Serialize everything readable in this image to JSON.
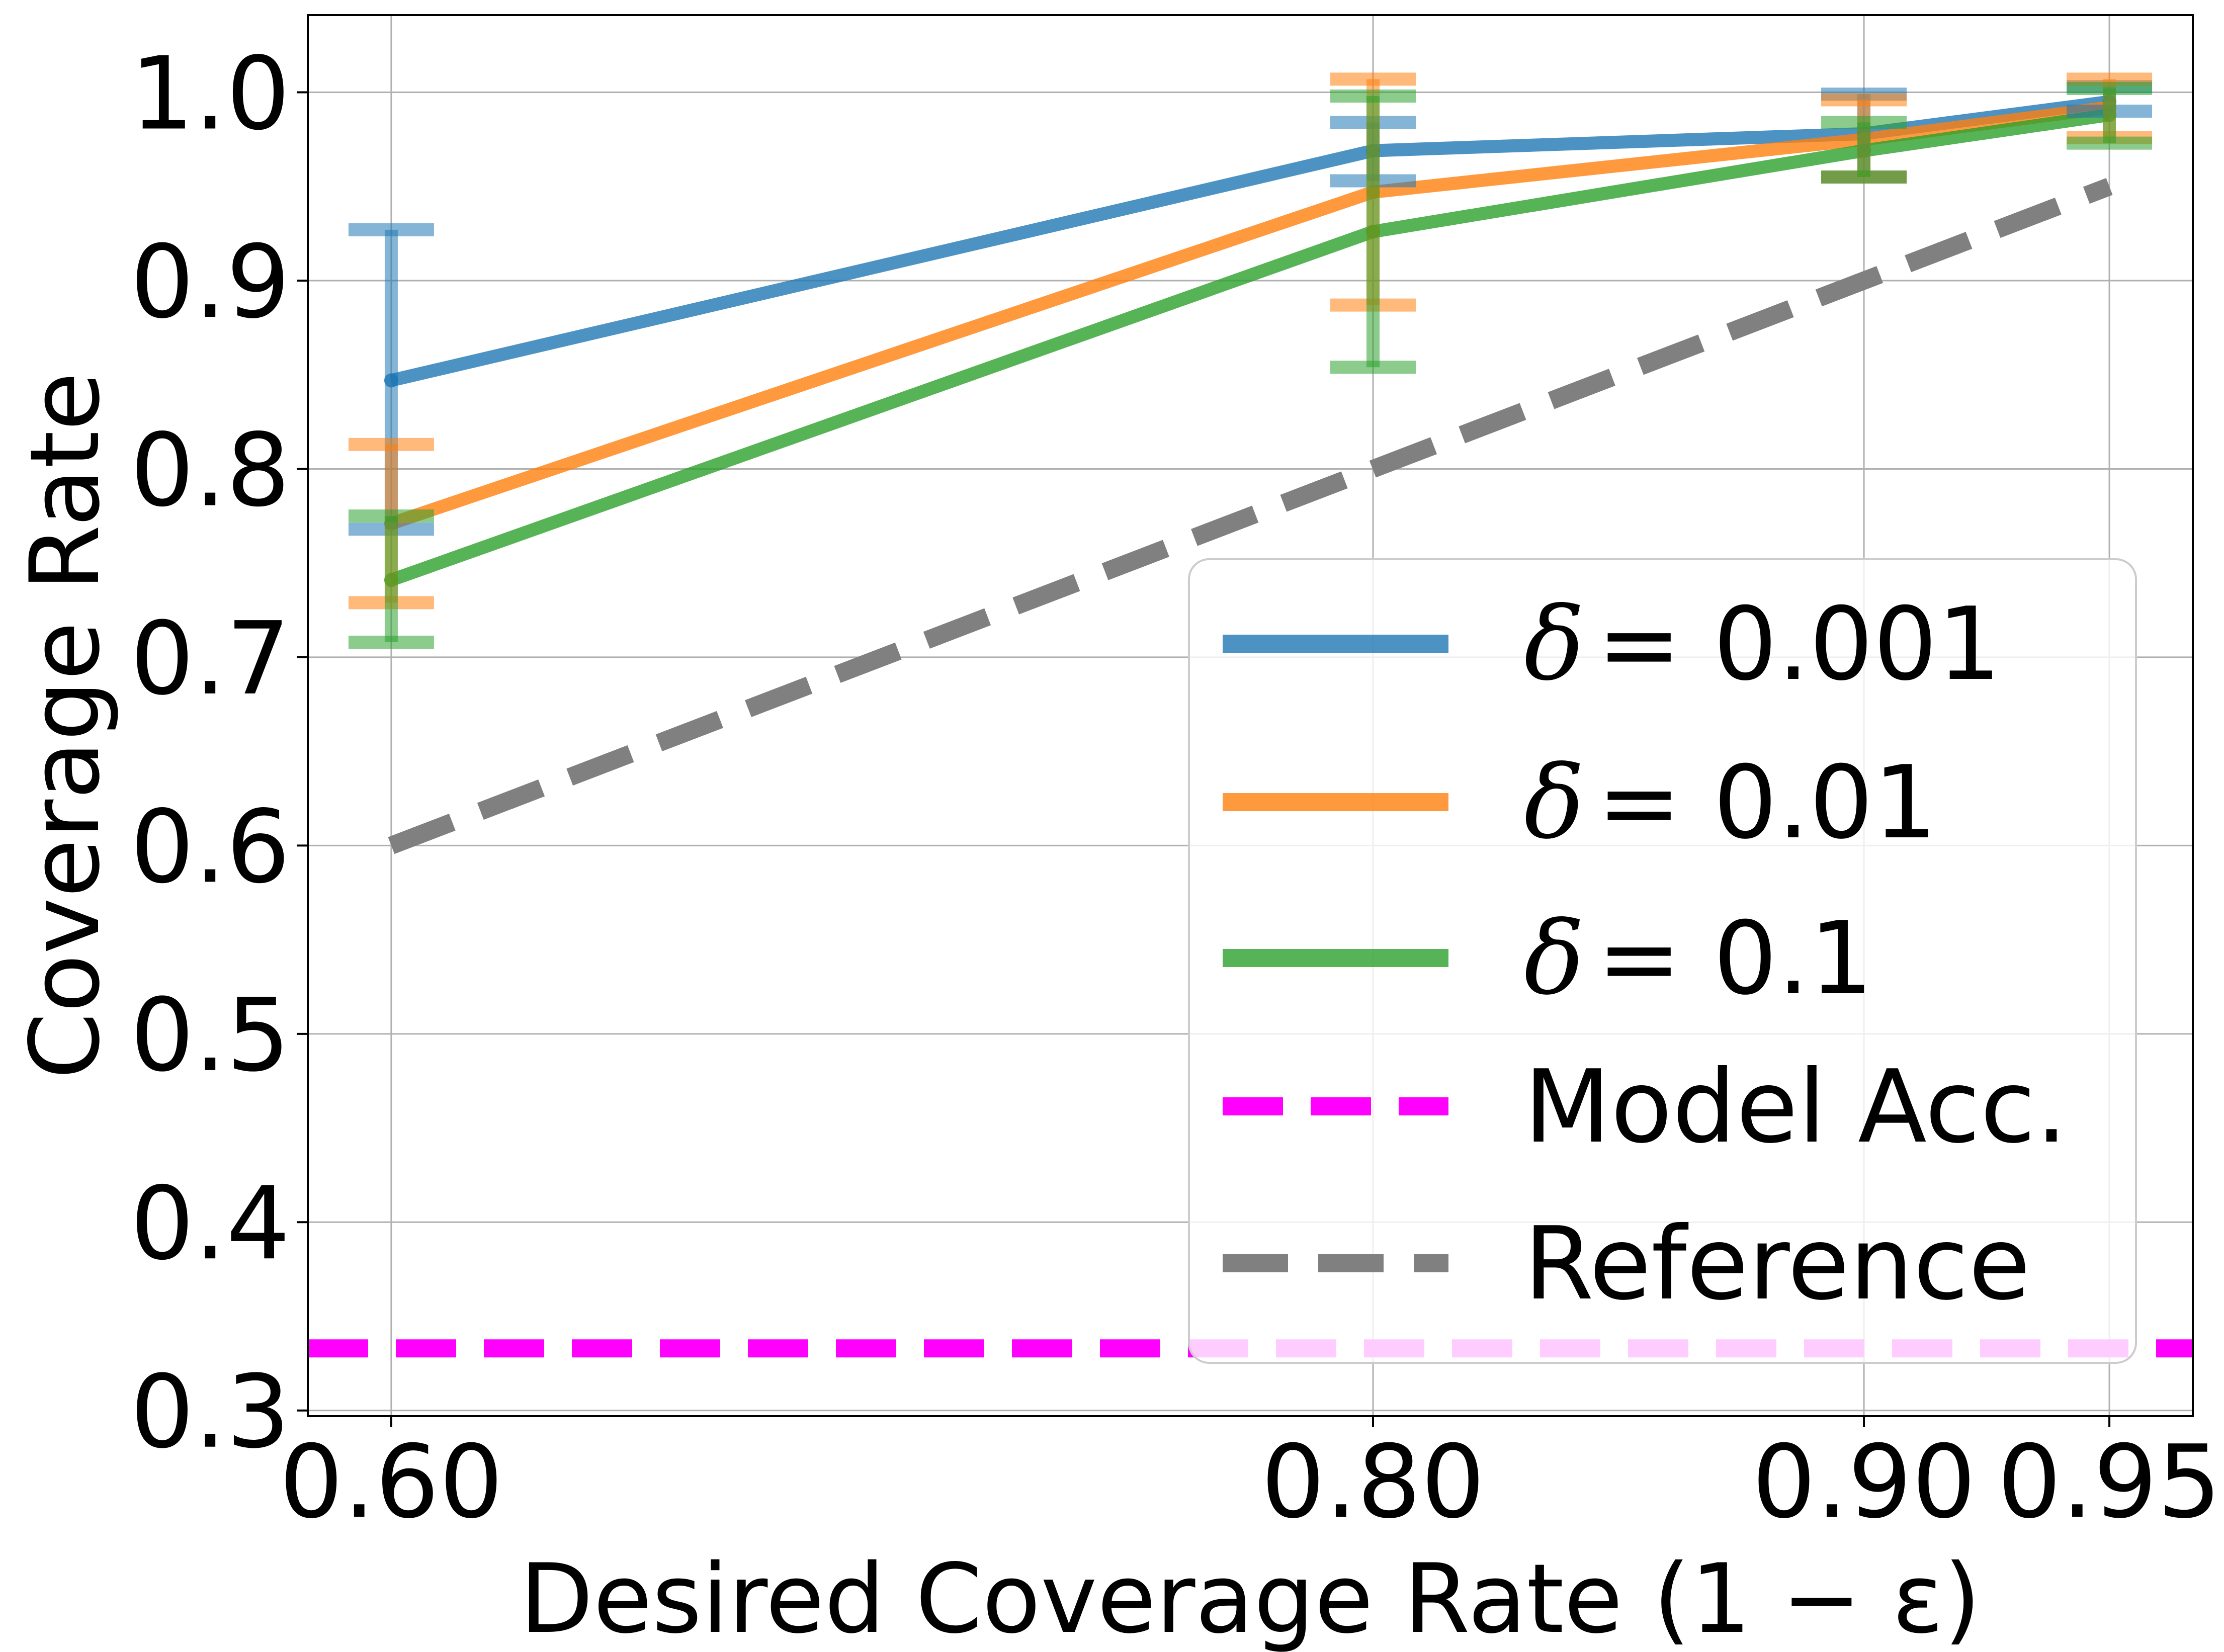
{
  "chart_data": {
    "type": "line",
    "xlabel": "Desired Coverage Rate (1 − ε)",
    "ylabel": "Coverage Rate",
    "x_ticks": [
      {
        "value": 0.6,
        "label": "0.60"
      },
      {
        "value": 0.8,
        "label": "0.80"
      },
      {
        "value": 0.9,
        "label": "0.90"
      },
      {
        "value": 0.95,
        "label": "0.95"
      }
    ],
    "y_ticks": [
      {
        "value": 0.3,
        "label": "0.3"
      },
      {
        "value": 0.4,
        "label": "0.4"
      },
      {
        "value": 0.5,
        "label": "0.5"
      },
      {
        "value": 0.6,
        "label": "0.6"
      },
      {
        "value": 0.7,
        "label": "0.7"
      },
      {
        "value": 0.8,
        "label": "0.8"
      },
      {
        "value": 0.9,
        "label": "0.9"
      },
      {
        "value": 1.0,
        "label": "1.0"
      }
    ],
    "xlim": [
      0.583,
      0.967
    ],
    "ylim": [
      0.297,
      1.041
    ],
    "grid": true,
    "legend_position": "lower-right",
    "x": [
      0.6,
      0.8,
      0.9,
      0.95
    ],
    "series": [
      {
        "name": "δ = 0.001",
        "name_symbol": "δ",
        "name_value": "= 0.001",
        "color": "#1f77b4",
        "values": [
          0.847,
          0.969,
          0.978,
          0.995
        ],
        "err_low": [
          0.768,
          0.953,
          0.955,
          0.99
        ],
        "err_high": [
          0.927,
          0.984,
          0.999,
          1.003
        ]
      },
      {
        "name": "δ = 0.01",
        "name_symbol": "δ",
        "name_value": "= 0.01",
        "color": "#ff7f0e",
        "values": [
          0.771,
          0.947,
          0.975,
          0.992
        ],
        "err_low": [
          0.729,
          0.887,
          0.955,
          0.976
        ],
        "err_high": [
          0.813,
          1.007,
          0.996,
          1.007
        ]
      },
      {
        "name": "δ = 0.1",
        "name_symbol": "δ",
        "name_value": "= 0.1",
        "color": "#2ca02c",
        "values": [
          0.741,
          0.926,
          0.969,
          0.988
        ],
        "err_low": [
          0.708,
          0.854,
          0.955,
          0.973
        ],
        "err_high": [
          0.775,
          0.998,
          0.984,
          1.002
        ]
      }
    ],
    "model_accuracy": {
      "name": "Model Acc.",
      "value": 0.333,
      "color": "#ff00ff"
    },
    "reference": {
      "name": "Reference",
      "color": "#808080",
      "x": [
        0.6,
        0.95
      ],
      "values": [
        0.6,
        0.95
      ]
    }
  }
}
